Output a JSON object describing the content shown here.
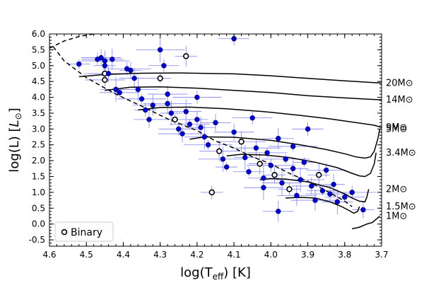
{
  "chart_data": {
    "type": "scatter",
    "xlabel": "log(T_eff) [K]",
    "ylabel": "log(L) [L_⊙]",
    "xlim": [
      4.6,
      3.7
    ],
    "ylim": [
      -0.7,
      6.0
    ],
    "x_ticks": [
      4.6,
      4.5,
      4.4,
      4.3,
      4.2,
      4.1,
      4.0,
      3.9,
      3.8,
      3.7
    ],
    "x_tick_labels": [
      "4.6",
      "4.5",
      "4.4",
      "4.3",
      "4.2",
      "4.1",
      "4.0",
      "3.9",
      "3.8",
      "3.7"
    ],
    "y_ticks": [
      -0.5,
      0.0,
      0.5,
      1.0,
      1.5,
      2.0,
      2.5,
      3.0,
      3.5,
      4.0,
      4.5,
      5.0,
      5.5,
      6.0
    ],
    "y_tick_labels": [
      "-0.5",
      "0.0",
      "0.5",
      "1.0",
      "1.5",
      "2.0",
      "2.5",
      "3.0",
      "3.5",
      "4.0",
      "4.5",
      "5.0",
      "5.5",
      "6.0"
    ],
    "legend": {
      "label": "Binary",
      "position": "bottom-left"
    },
    "colors": {
      "point": "#0000cc",
      "errorbar": "#8080ee",
      "track": "#000000"
    },
    "tracks": [
      {
        "mass": "20M⊙",
        "points": [
          [
            4.52,
            4.65
          ],
          [
            4.45,
            4.72
          ],
          [
            4.35,
            4.76
          ],
          [
            4.25,
            4.77
          ],
          [
            4.1,
            4.74
          ],
          [
            4.0,
            4.68
          ],
          [
            3.9,
            4.6
          ],
          [
            3.8,
            4.52
          ],
          [
            3.7,
            4.45
          ]
        ]
      },
      {
        "mass": "14M⊙",
        "points": [
          [
            4.45,
            4.22
          ],
          [
            4.38,
            4.32
          ],
          [
            4.3,
            4.33
          ],
          [
            4.2,
            4.29
          ],
          [
            4.1,
            4.22
          ],
          [
            4.0,
            4.15
          ],
          [
            3.9,
            4.05
          ],
          [
            3.8,
            3.98
          ],
          [
            3.7,
            3.92
          ]
        ]
      },
      {
        "mass": "9M⊙",
        "points": [
          [
            4.36,
            3.6
          ],
          [
            4.3,
            3.68
          ],
          [
            4.22,
            3.69
          ],
          [
            4.12,
            3.64
          ],
          [
            4.02,
            3.55
          ],
          [
            3.92,
            3.43
          ],
          [
            3.84,
            3.32
          ],
          [
            3.78,
            3.22
          ],
          [
            3.72,
            3.12
          ],
          [
            3.7,
            3.05
          ]
        ]
      },
      {
        "mass": "5M⊙",
        "points": [
          [
            4.22,
            2.68
          ],
          [
            4.18,
            2.75
          ],
          [
            4.1,
            2.74
          ],
          [
            4.0,
            2.64
          ],
          [
            3.92,
            2.5
          ],
          [
            3.85,
            2.35
          ],
          [
            3.8,
            2.22
          ],
          [
            3.77,
            2.12
          ],
          [
            3.745,
            2.08
          ],
          [
            3.73,
            2.12
          ],
          [
            3.72,
            2.3
          ],
          [
            3.71,
            2.7
          ],
          [
            3.705,
            3.0
          ]
        ]
      },
      {
        "mass": "3.4M⊙",
        "points": [
          [
            4.12,
            2.15
          ],
          [
            4.08,
            2.2
          ],
          [
            4.02,
            2.18
          ],
          [
            3.95,
            2.1
          ],
          [
            3.88,
            1.95
          ],
          [
            3.82,
            1.78
          ],
          [
            3.78,
            1.6
          ],
          [
            3.76,
            1.52
          ],
          [
            3.745,
            1.5
          ],
          [
            3.73,
            1.6
          ],
          [
            3.72,
            1.9
          ],
          [
            3.715,
            2.25
          ]
        ]
      },
      {
        "mass": "2M⊙",
        "points": [
          [
            4.03,
            1.4
          ],
          [
            4.0,
            1.43
          ],
          [
            3.96,
            1.42
          ],
          [
            3.9,
            1.33
          ],
          [
            3.84,
            1.15
          ],
          [
            3.8,
            0.95
          ],
          [
            3.78,
            0.82
          ],
          [
            3.76,
            0.72
          ],
          [
            3.745,
            0.7
          ],
          [
            3.74,
            0.85
          ],
          [
            3.735,
            1.1
          ]
        ]
      },
      {
        "mass": "1.5M⊙",
        "points": [
          [
            3.96,
            0.82
          ],
          [
            3.92,
            0.84
          ],
          [
            3.88,
            0.82
          ],
          [
            3.84,
            0.7
          ],
          [
            3.81,
            0.56
          ],
          [
            3.79,
            0.44
          ],
          [
            3.775,
            0.34
          ],
          [
            3.765,
            0.4
          ],
          [
            3.76,
            0.55
          ]
        ]
      },
      {
        "mass": "1M⊙",
        "points": [
          [
            3.78,
            -0.15
          ],
          [
            3.76,
            -0.1
          ],
          [
            3.74,
            0.0
          ],
          [
            3.725,
            0.05
          ],
          [
            3.715,
            0.15
          ],
          [
            3.705,
            0.25
          ]
        ]
      }
    ],
    "zams": [
      [
        4.59,
        5.6
      ],
      [
        4.56,
        5.15
      ],
      [
        4.5,
        4.62
      ],
      [
        4.42,
        4.1
      ],
      [
        4.35,
        3.72
      ],
      [
        4.28,
        3.32
      ],
      [
        4.2,
        2.95
      ],
      [
        4.15,
        2.62
      ],
      [
        4.1,
        2.4
      ],
      [
        4.05,
        2.12
      ],
      [
        4.0,
        1.9
      ],
      [
        3.95,
        1.6
      ],
      [
        3.9,
        1.35
      ],
      [
        3.85,
        1.05
      ],
      [
        3.8,
        0.72
      ],
      [
        3.78,
        0.55
      ]
    ],
    "track_start": [
      [
        4.6,
        5.55
      ],
      [
        4.56,
        5.78
      ],
      [
        4.52,
        5.92
      ],
      [
        4.48,
        6.0
      ]
    ],
    "stars": [
      {
        "x": 4.52,
        "y": 5.05,
        "binary": false
      },
      {
        "x": 4.47,
        "y": 5.2,
        "binary": false
      },
      {
        "x": 4.46,
        "y": 5.25,
        "binary": false
      },
      {
        "x": 4.45,
        "y": 5.15,
        "binary": false
      },
      {
        "x": 4.45,
        "y": 5.0,
        "binary": false
      },
      {
        "x": 4.45,
        "y": 4.75,
        "binary": true
      },
      {
        "x": 4.45,
        "y": 4.55,
        "binary": true
      },
      {
        "x": 4.44,
        "y": 4.75,
        "binary": false
      },
      {
        "x": 4.43,
        "y": 5.2,
        "binary": false
      },
      {
        "x": 4.42,
        "y": 4.25,
        "binary": false
      },
      {
        "x": 4.41,
        "y": 4.15,
        "binary": false
      },
      {
        "x": 4.39,
        "y": 4.9,
        "binary": false
      },
      {
        "x": 4.38,
        "y": 4.85,
        "binary": false
      },
      {
        "x": 4.37,
        "y": 4.6,
        "binary": false
      },
      {
        "x": 4.36,
        "y": 4.25,
        "binary": false
      },
      {
        "x": 4.35,
        "y": 3.95,
        "binary": false
      },
      {
        "x": 4.34,
        "y": 3.6,
        "binary": false
      },
      {
        "x": 4.33,
        "y": 3.3,
        "binary": false
      },
      {
        "x": 4.32,
        "y": 3.75,
        "binary": false
      },
      {
        "x": 4.3,
        "y": 5.5,
        "binary": false
      },
      {
        "x": 4.3,
        "y": 4.6,
        "binary": true
      },
      {
        "x": 4.29,
        "y": 5.0,
        "binary": false
      },
      {
        "x": 4.28,
        "y": 4.1,
        "binary": false
      },
      {
        "x": 4.28,
        "y": 3.8,
        "binary": false
      },
      {
        "x": 4.27,
        "y": 3.5,
        "binary": false
      },
      {
        "x": 4.26,
        "y": 3.3,
        "binary": true
      },
      {
        "x": 4.25,
        "y": 3.0,
        "binary": false
      },
      {
        "x": 4.24,
        "y": 2.85,
        "binary": false
      },
      {
        "x": 4.23,
        "y": 5.3,
        "binary": true
      },
      {
        "x": 4.23,
        "y": 3.55,
        "binary": false
      },
      {
        "x": 4.22,
        "y": 3.15,
        "binary": false
      },
      {
        "x": 4.2,
        "y": 4.0,
        "binary": false
      },
      {
        "x": 4.2,
        "y": 3.3,
        "binary": false
      },
      {
        "x": 4.19,
        "y": 3.05,
        "binary": false
      },
      {
        "x": 4.18,
        "y": 2.75,
        "binary": false
      },
      {
        "x": 4.17,
        "y": 2.5,
        "binary": false
      },
      {
        "x": 4.16,
        "y": 1.0,
        "binary": true
      },
      {
        "x": 4.15,
        "y": 3.2,
        "binary": false
      },
      {
        "x": 4.14,
        "y": 2.3,
        "binary": true
      },
      {
        "x": 4.13,
        "y": 2.05,
        "binary": false
      },
      {
        "x": 4.12,
        "y": 1.8,
        "binary": false
      },
      {
        "x": 4.1,
        "y": 5.85,
        "binary": false
      },
      {
        "x": 4.1,
        "y": 2.9,
        "binary": false
      },
      {
        "x": 4.08,
        "y": 2.6,
        "binary": true
      },
      {
        "x": 4.07,
        "y": 2.1,
        "binary": false
      },
      {
        "x": 4.06,
        "y": 1.65,
        "binary": false
      },
      {
        "x": 4.05,
        "y": 3.35,
        "binary": false
      },
      {
        "x": 4.04,
        "y": 2.4,
        "binary": false
      },
      {
        "x": 4.03,
        "y": 1.9,
        "binary": true
      },
      {
        "x": 4.02,
        "y": 1.45,
        "binary": false
      },
      {
        "x": 4.01,
        "y": 2.25,
        "binary": false
      },
      {
        "x": 4.0,
        "y": 1.85,
        "binary": false
      },
      {
        "x": 3.99,
        "y": 1.55,
        "binary": true
      },
      {
        "x": 3.98,
        "y": 2.7,
        "binary": false
      },
      {
        "x": 3.97,
        "y": 1.3,
        "binary": false
      },
      {
        "x": 3.96,
        "y": 2.05,
        "binary": false
      },
      {
        "x": 3.95,
        "y": 1.1,
        "binary": true
      },
      {
        "x": 3.94,
        "y": 1.75,
        "binary": false
      },
      {
        "x": 3.93,
        "y": 0.9,
        "binary": false
      },
      {
        "x": 3.92,
        "y": 1.4,
        "binary": false
      },
      {
        "x": 3.91,
        "y": 1.95,
        "binary": false
      },
      {
        "x": 3.9,
        "y": 3.0,
        "binary": false
      },
      {
        "x": 3.89,
        "y": 1.2,
        "binary": false
      },
      {
        "x": 3.88,
        "y": 0.75,
        "binary": false
      },
      {
        "x": 3.87,
        "y": 1.55,
        "binary": true
      },
      {
        "x": 3.86,
        "y": 1.05,
        "binary": false
      },
      {
        "x": 3.85,
        "y": 1.7,
        "binary": false
      },
      {
        "x": 3.84,
        "y": 0.95,
        "binary": false
      },
      {
        "x": 3.83,
        "y": 1.25,
        "binary": false
      },
      {
        "x": 3.82,
        "y": 0.7,
        "binary": false
      },
      {
        "x": 3.8,
        "y": 0.85,
        "binary": false
      },
      {
        "x": 3.78,
        "y": 1.0,
        "binary": false
      },
      {
        "x": 3.75,
        "y": 0.45,
        "binary": false
      },
      {
        "x": 3.98,
        "y": 0.4,
        "binary": false
      },
      {
        "x": 4.02,
        "y": 1.15,
        "binary": false
      },
      {
        "x": 3.94,
        "y": 2.45,
        "binary": false
      }
    ]
  }
}
